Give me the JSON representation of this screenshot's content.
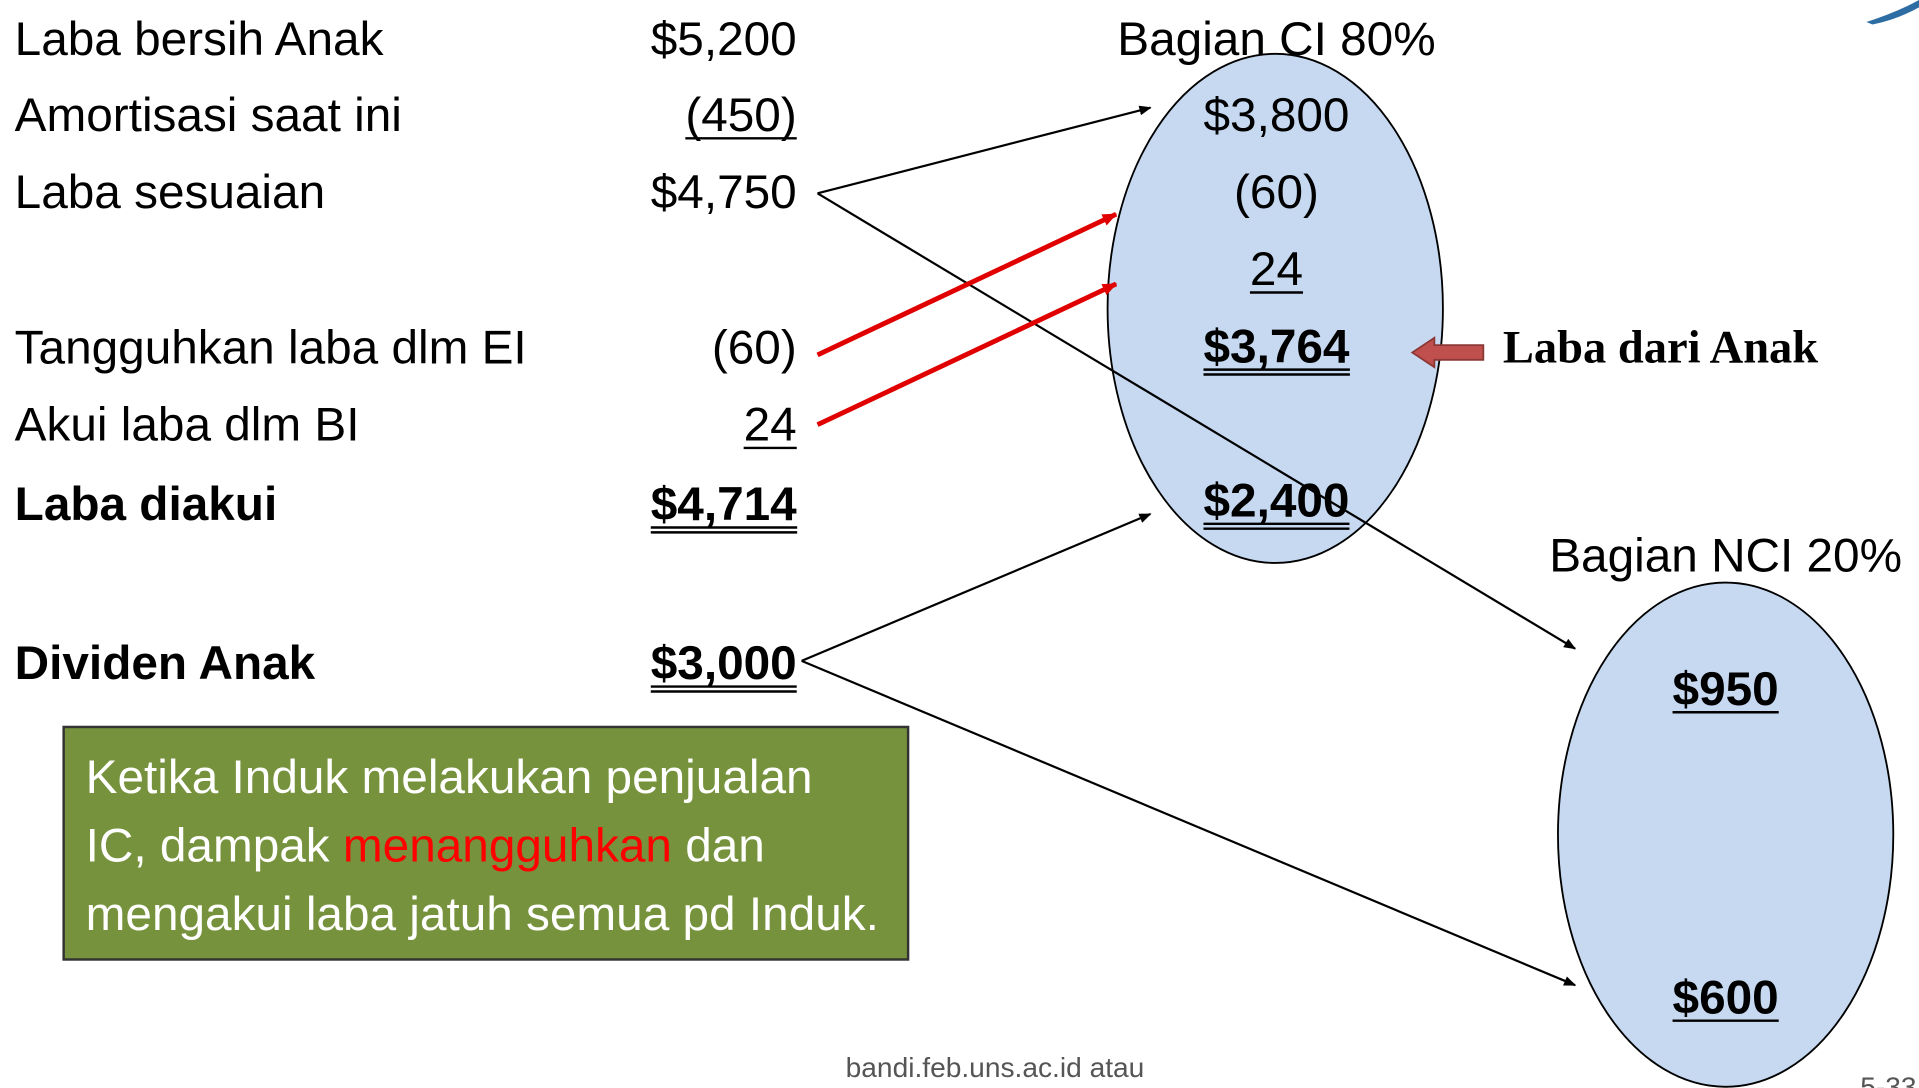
{
  "rows": [
    {
      "label": "Laba bersih Anak",
      "amount": "$5,200",
      "underline": 0,
      "bold": false
    },
    {
      "label": "Amortisasi saat ini",
      "amount": "(450)",
      "underline": 1,
      "bold": false
    },
    {
      "label": "Laba sesuaian",
      "amount": "$4,750",
      "underline": 0,
      "bold": false
    },
    {
      "label": "Tangguhkan laba dlm EI",
      "amount": "(60)",
      "underline": 0,
      "bold": false
    },
    {
      "label": "Akui laba dlm BI",
      "amount": "24",
      "underline": 1,
      "bold": false
    },
    {
      "label": "Laba diakui",
      "amount": "$4,714",
      "underline": 2,
      "bold": true
    },
    {
      "label": "Dividen Anak",
      "amount": "$3,000",
      "underline": 2,
      "bold": true
    }
  ],
  "ci": {
    "title": "Bagian CI 80%",
    "items": [
      {
        "text": "$3,800",
        "underline": 0,
        "bold": false
      },
      {
        "text": "(60)",
        "underline": 0,
        "bold": false
      },
      {
        "text": "24",
        "underline": 1,
        "bold": false
      },
      {
        "text": "$3,764",
        "underline": 2,
        "bold": true
      },
      {
        "text": "$2,400",
        "underline": 2,
        "bold": true
      }
    ]
  },
  "nci": {
    "title": "Bagian NCI 20%",
    "items": [
      {
        "text": "$950",
        "underline": 1,
        "bold": true
      },
      {
        "text": "$600",
        "underline": 1,
        "bold": true
      }
    ]
  },
  "callout": "Laba dari Anak",
  "note": {
    "line1": "Ketika Induk melakukan penjualan",
    "line2_start": "IC, dampak",
    "line2_highlight": "menangguhkan",
    "line2_end": "dan",
    "line3": "mengakui laba jatuh semua pd Induk."
  },
  "footer": "bandi.feb.uns.ac.id atau",
  "page_number": "5-33"
}
